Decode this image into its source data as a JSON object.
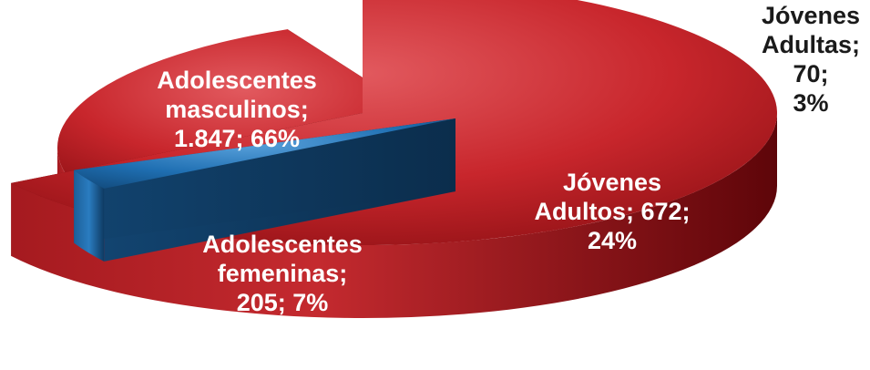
{
  "chart_data": {
    "type": "pie",
    "style": "3d-exploded",
    "slices": [
      {
        "label": "Adolescentes masculinos",
        "value": 1847,
        "value_label": "1.847",
        "percent": 66,
        "color": "#c8262c"
      },
      {
        "label": "Jóvenes Adultas",
        "value": 70,
        "value_label": "70",
        "percent": 3,
        "color": "#1f6fb2"
      },
      {
        "label": "Jóvenes Adultos",
        "value": 672,
        "value_label": "672",
        "percent": 24,
        "color": "#c8262c"
      },
      {
        "label": "Adolescentes femeninas",
        "value": 205,
        "value_label": "205",
        "percent": 7,
        "color": "#1f6fb2"
      }
    ],
    "data_labels": [
      "Adolescentes\nmasculinos;\n1.847; 66%",
      "Jóvenes\nAdultas; 70;\n3%",
      "Jóvenes\nAdultos; 672;\n24%",
      "Adolescentes\nfemeninas;\n205; 7%"
    ]
  }
}
